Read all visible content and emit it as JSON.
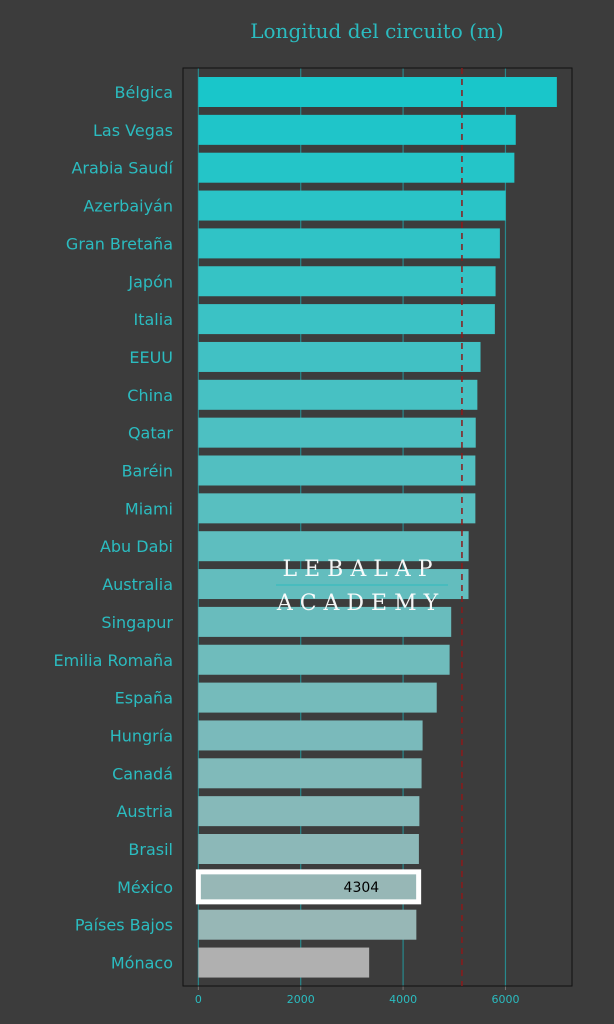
{
  "chart_data": {
    "type": "bar",
    "orientation": "horizontal",
    "title": "Longitud del circuito (m)",
    "xlabel": "",
    "ylabel": "",
    "xlim": [
      -300,
      7300
    ],
    "x_ticks": [
      "0",
      "2000",
      "4000",
      "6000"
    ],
    "grid": "vertical",
    "categories": [
      "Bélgica",
      "Las Vegas",
      "Arabia Saudí",
      "Azerbaiyán",
      "Gran Bretaña",
      "Japón",
      "Italia",
      "EEUU",
      "China",
      "Qatar",
      "Baréin",
      "Miami",
      "Abu Dabi",
      "Australia",
      "Singapur",
      "Emilia Romaña",
      "España",
      "Hungría",
      "Canadá",
      "Austria",
      "Brasil",
      "México",
      "Países Bajos",
      "Mónaco"
    ],
    "values": [
      7004,
      6201,
      6174,
      6003,
      5891,
      5807,
      5793,
      5513,
      5451,
      5419,
      5412,
      5412,
      5281,
      5278,
      4940,
      4909,
      4657,
      4381,
      4361,
      4318,
      4309,
      4304,
      4259,
      3337
    ],
    "reference_line": 5150,
    "highlight": {
      "category": "México",
      "label": "4304"
    },
    "colors": {
      "background": "#3c3c3c",
      "text": "#2bbcc0",
      "bar_top": "#19c6ca",
      "bar_bottom": "#97b7b6",
      "monaco": "#b0b0b0",
      "highlight_border": "#ffffff",
      "reference_line": "#8b1a1a",
      "grid": "#27898d"
    }
  },
  "watermark": {
    "line1": "LEBALAP",
    "line2": "ACADEMY"
  }
}
